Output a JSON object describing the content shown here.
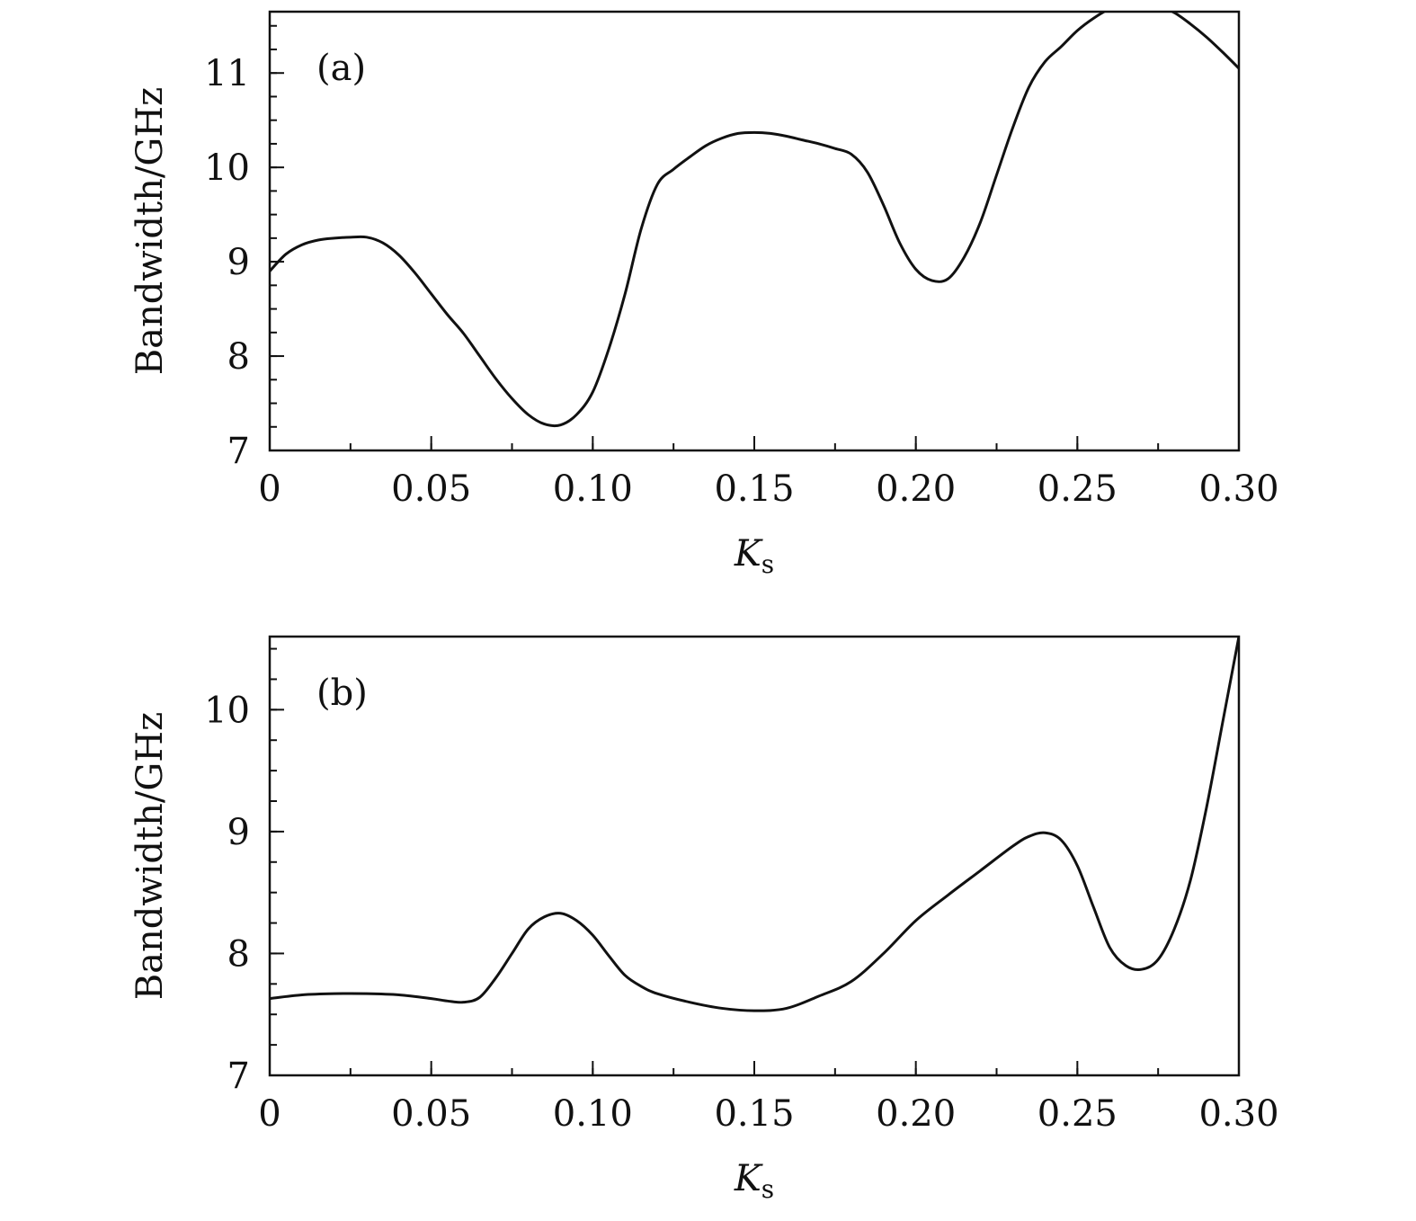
{
  "chart_data": [
    {
      "type": "line",
      "panel_label": "(a)",
      "xlabel": "K",
      "xlabel_sub": "s",
      "ylabel": "Bandwidth/GHz",
      "xlim": [
        0,
        0.3
      ],
      "ylim": [
        7,
        11.65
      ],
      "xticks": [
        0,
        0.05,
        0.1,
        0.15,
        0.2,
        0.25,
        0.3
      ],
      "xtick_labels": [
        "0",
        "0.05",
        "0.10",
        "0.15",
        "0.20",
        "0.25",
        "0.30"
      ],
      "yticks": [
        7,
        8,
        9,
        10,
        11
      ],
      "ytick_labels": [
        "7",
        "8",
        "9",
        "10",
        "11"
      ],
      "yminor_step": 0.25,
      "xminor_step": 0.025,
      "grid": false,
      "series": [
        {
          "x": [
            0,
            0.005,
            0.01,
            0.015,
            0.02,
            0.025,
            0.03,
            0.035,
            0.04,
            0.045,
            0.05,
            0.055,
            0.06,
            0.065,
            0.07,
            0.075,
            0.08,
            0.085,
            0.09,
            0.095,
            0.1,
            0.105,
            0.11,
            0.115,
            0.12,
            0.125,
            0.13,
            0.135,
            0.14,
            0.145,
            0.15,
            0.155,
            0.16,
            0.165,
            0.17,
            0.175,
            0.18,
            0.185,
            0.19,
            0.195,
            0.2,
            0.205,
            0.21,
            0.215,
            0.22,
            0.225,
            0.23,
            0.235,
            0.24,
            0.245,
            0.25,
            0.255,
            0.26,
            0.265,
            0.27,
            0.275,
            0.28,
            0.285,
            0.29,
            0.295,
            0.3
          ],
          "y": [
            8.9,
            9.08,
            9.18,
            9.23,
            9.25,
            9.26,
            9.26,
            9.2,
            9.07,
            8.88,
            8.66,
            8.44,
            8.24,
            8.0,
            7.76,
            7.55,
            7.38,
            7.28,
            7.27,
            7.38,
            7.62,
            8.08,
            8.66,
            9.35,
            9.82,
            9.98,
            10.11,
            10.23,
            10.31,
            10.36,
            10.37,
            10.36,
            10.33,
            10.29,
            10.25,
            10.2,
            10.14,
            9.95,
            9.6,
            9.2,
            8.92,
            8.8,
            8.82,
            9.05,
            9.42,
            9.92,
            10.42,
            10.85,
            11.12,
            11.28,
            11.45,
            11.58,
            11.68,
            11.73,
            11.74,
            11.71,
            11.64,
            11.52,
            11.38,
            11.22,
            11.05
          ]
        }
      ]
    },
    {
      "type": "line",
      "panel_label": "(b)",
      "xlabel": "K",
      "xlabel_sub": "s",
      "ylabel": "Bandwidth/GHz",
      "xlim": [
        0,
        0.3
      ],
      "ylim": [
        7,
        10.6
      ],
      "xticks": [
        0,
        0.05,
        0.1,
        0.15,
        0.2,
        0.25,
        0.3
      ],
      "xtick_labels": [
        "0",
        "0.05",
        "0.10",
        "0.15",
        "0.20",
        "0.25",
        "0.30"
      ],
      "yticks": [
        7,
        8,
        9,
        10
      ],
      "ytick_labels": [
        "7",
        "8",
        "9",
        "10"
      ],
      "yminor_step": 0.25,
      "xminor_step": 0.025,
      "grid": false,
      "series": [
        {
          "x": [
            0,
            0.01,
            0.02,
            0.03,
            0.04,
            0.05,
            0.055,
            0.06,
            0.065,
            0.07,
            0.075,
            0.08,
            0.085,
            0.09,
            0.095,
            0.1,
            0.105,
            0.11,
            0.115,
            0.12,
            0.13,
            0.14,
            0.15,
            0.16,
            0.17,
            0.18,
            0.19,
            0.2,
            0.21,
            0.22,
            0.23,
            0.235,
            0.24,
            0.245,
            0.25,
            0.255,
            0.26,
            0.265,
            0.27,
            0.275,
            0.28,
            0.285,
            0.29,
            0.295,
            0.3
          ],
          "y": [
            7.63,
            7.66,
            7.67,
            7.67,
            7.66,
            7.63,
            7.61,
            7.6,
            7.64,
            7.8,
            8.0,
            8.2,
            8.3,
            8.33,
            8.27,
            8.15,
            7.98,
            7.82,
            7.73,
            7.67,
            7.6,
            7.55,
            7.53,
            7.55,
            7.65,
            7.77,
            8.0,
            8.27,
            8.48,
            8.68,
            8.88,
            8.96,
            8.99,
            8.93,
            8.72,
            8.38,
            8.05,
            7.9,
            7.87,
            7.95,
            8.2,
            8.6,
            9.2,
            9.9,
            10.6
          ]
        }
      ]
    }
  ]
}
